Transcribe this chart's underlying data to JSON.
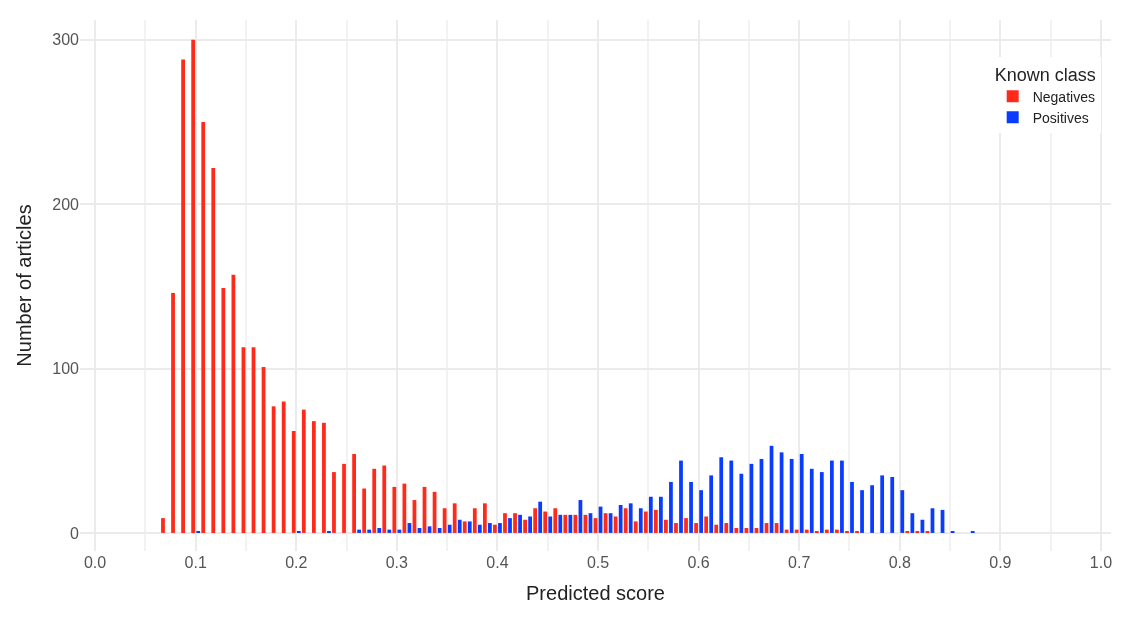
{
  "chart_data": {
    "type": "bar",
    "xlabel": "Predicted score",
    "ylabel": "Number of articles",
    "legend_title": "Known class",
    "x": [
      0.07,
      0.08,
      0.09,
      0.1,
      0.11,
      0.12,
      0.13,
      0.14,
      0.15,
      0.16,
      0.17,
      0.18,
      0.19,
      0.2,
      0.21,
      0.22,
      0.23,
      0.24,
      0.25,
      0.26,
      0.27,
      0.28,
      0.29,
      0.3,
      0.31,
      0.32,
      0.33,
      0.34,
      0.35,
      0.36,
      0.37,
      0.38,
      0.39,
      0.4,
      0.41,
      0.42,
      0.43,
      0.44,
      0.45,
      0.46,
      0.47,
      0.48,
      0.49,
      0.5,
      0.51,
      0.52,
      0.53,
      0.54,
      0.55,
      0.56,
      0.57,
      0.58,
      0.59,
      0.6,
      0.61,
      0.62,
      0.63,
      0.64,
      0.65,
      0.66,
      0.67,
      0.68,
      0.69,
      0.7,
      0.71,
      0.72,
      0.73,
      0.74,
      0.75,
      0.76,
      0.77,
      0.78,
      0.79,
      0.8,
      0.81,
      0.82,
      0.83,
      0.84,
      0.85,
      0.86,
      0.87
    ],
    "series": [
      {
        "name": "Negatives",
        "color": "#ff2a1a",
        "values": [
          9,
          146,
          288,
          300,
          250,
          222,
          149,
          157,
          113,
          113,
          101,
          77,
          80,
          62,
          75,
          68,
          67,
          37,
          42,
          48,
          27,
          39,
          41,
          28,
          30,
          20,
          28,
          25,
          15,
          18,
          7,
          15,
          18,
          5,
          12,
          12,
          8,
          15,
          13,
          15,
          11,
          11,
          11,
          9,
          12,
          10,
          15,
          7,
          13,
          14,
          8,
          6,
          9,
          6,
          10,
          5,
          6,
          3,
          3,
          3,
          6,
          6,
          2,
          2,
          2,
          1,
          2,
          2,
          1,
          1,
          0,
          0,
          0,
          0,
          1,
          1,
          1,
          0,
          0,
          0,
          0
        ]
      },
      {
        "name": "Positives",
        "color": "#0a3cff",
        "values": [
          0,
          0,
          0,
          1,
          0,
          0,
          0,
          0,
          0,
          0,
          0,
          0,
          0,
          1,
          0,
          0,
          1,
          0,
          0,
          2,
          2,
          3,
          2,
          2,
          6,
          3,
          4,
          3,
          5,
          8,
          7,
          5,
          6,
          6,
          9,
          11,
          10,
          19,
          10,
          11,
          11,
          20,
          12,
          16,
          12,
          17,
          18,
          15,
          22,
          22,
          31,
          44,
          31,
          26,
          35,
          46,
          44,
          36,
          42,
          45,
          53,
          49,
          45,
          48,
          39,
          37,
          44,
          44,
          31,
          26,
          29,
          35,
          34,
          26,
          12,
          8,
          15,
          14,
          1,
          0,
          1
        ]
      }
    ],
    "xlim": [
      -0.015,
      1.01
    ],
    "xticks": [
      {
        "value": 0,
        "label": "0.0"
      },
      0.1,
      0.2,
      0.3,
      0.4,
      0.5,
      0.6,
      0.7,
      0.8,
      0.9,
      {
        "value": 1,
        "label": "1.0"
      }
    ],
    "ylim": [
      -11,
      312
    ],
    "yticks": [
      0,
      100,
      200,
      300
    ],
    "grid": true,
    "legend": "top right"
  }
}
